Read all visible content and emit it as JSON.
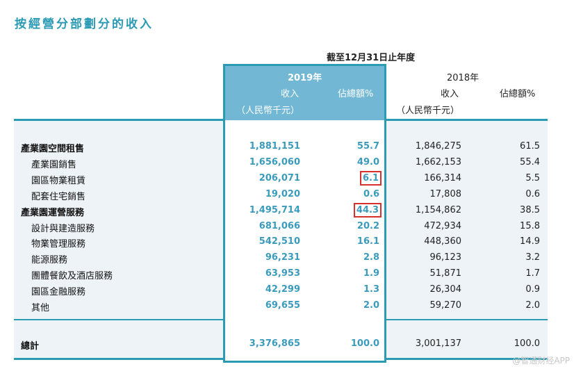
{
  "title": "按經營分部劃分的收入",
  "period": "截至12月31日止年度",
  "headers": {
    "y2019": "2019年",
    "y2018": "2018年",
    "revenue": "收入",
    "unit": "（人民幣千元）",
    "pct": "佔總額%"
  },
  "rows": [
    {
      "label": "產業園空間租售",
      "bold": true,
      "r2019": "1,881,151",
      "p2019": "55.7",
      "r2018": "1,846,275",
      "p2018": "61.5"
    },
    {
      "label": "產業園銷售",
      "r2019": "1,656,060",
      "p2019": "49.0",
      "r2018": "1,662,153",
      "p2018": "55.4"
    },
    {
      "label": "園區物業租賃",
      "r2019": "206,071",
      "p2019": "6.1",
      "r2018": "166,314",
      "p2018": "5.5",
      "highlight": true
    },
    {
      "label": "配套住宅銷售",
      "r2019": "19,020",
      "p2019": "0.6",
      "r2018": "17,808",
      "p2018": "0.6"
    },
    {
      "label": "產業園運營服務",
      "bold": true,
      "r2019": "1,495,714",
      "p2019": "44.3",
      "r2018": "1,154,862",
      "p2018": "38.5",
      "highlight": true
    },
    {
      "label": "設計與建造服務",
      "r2019": "681,066",
      "p2019": "20.2",
      "r2018": "472,934",
      "p2018": "15.8"
    },
    {
      "label": "物業管理服務",
      "r2019": "542,510",
      "p2019": "16.1",
      "r2018": "448,360",
      "p2018": "14.9"
    },
    {
      "label": "能源服務",
      "r2019": "96,231",
      "p2019": "2.8",
      "r2018": "96,123",
      "p2018": "3.2"
    },
    {
      "label": "團體餐飲及酒店服務",
      "r2019": "63,953",
      "p2019": "1.9",
      "r2018": "51,871",
      "p2018": "1.7"
    },
    {
      "label": "園區金融服務",
      "r2019": "42,299",
      "p2019": "1.3",
      "r2018": "26,304",
      "p2018": "0.9"
    },
    {
      "label": "其他",
      "r2019": "69,655",
      "p2019": "2.0",
      "r2018": "59,270",
      "p2018": "2.0"
    }
  ],
  "total": {
    "label": "總計",
    "r2019": "3,376,865",
    "p2019": "100.0",
    "r2018": "3,001,137",
    "p2018": "100.0"
  },
  "watermark": "@智通财经APP",
  "colors": {
    "accent": "#2b9bb4",
    "highlight_header": "#72b8d4",
    "callout": "#d9302b"
  }
}
